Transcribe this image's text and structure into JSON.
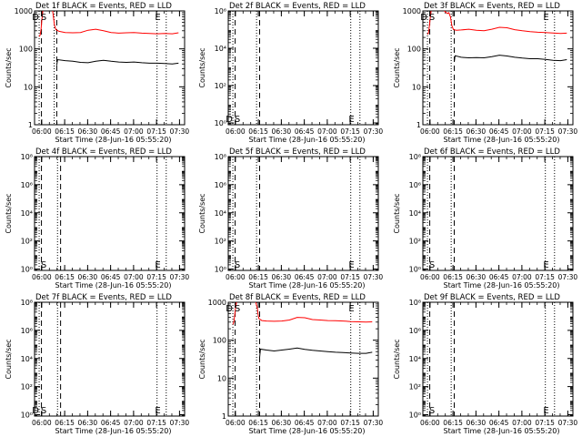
{
  "figure": {
    "xlabel": "Start Time (28-Jun-16 05:55:20)",
    "ylabel": "Counts/sec",
    "x_ticks": [
      "06:00",
      "06:15",
      "06:30",
      "06:45",
      "07:00",
      "07:15",
      "07:30"
    ],
    "x_tick_minutes": [
      4.67,
      19.67,
      34.67,
      49.67,
      64.67,
      79.67,
      94.67
    ],
    "x_range": [
      0,
      98
    ],
    "markers": {
      "start_label": "S",
      "end_label": "E",
      "start_min": 3.5,
      "end_min": 80.5
    },
    "colors": {
      "events": "#000000",
      "lld": "#ff0000",
      "axes": "#000000"
    }
  },
  "chart_data": [
    {
      "type": "line",
      "title": "Det 1f BLACK = Events, RED = LLD",
      "scale": "log",
      "ylim": [
        1,
        1000
      ],
      "y_ticks": [
        {
          "v": 1,
          "label": "1"
        },
        {
          "v": 10,
          "label": "10"
        },
        {
          "v": 100,
          "label": "100"
        },
        {
          "v": 1000,
          "label": "1000"
        }
      ],
      "dashed_lines": [
        4.5,
        14.5
      ],
      "dotted_lines": [
        3.0,
        12.8,
        80.0,
        86.0
      ],
      "show_D": true,
      "end_label_pos": "top",
      "series": [
        {
          "name": "LLD",
          "color": "#ff0000",
          "x": [
            3.0,
            3.6,
            4.2,
            4.8,
            5.4,
            6.0,
            11.0,
            11.8,
            12.4,
            13.0,
            14.0,
            16.0,
            20.0,
            25.0,
            30.0,
            35.0,
            40.0,
            45.0,
            50.0,
            55.0,
            60.0,
            65.0,
            70.0,
            75.0,
            80.0,
            85.0,
            90.0,
            94.0
          ],
          "y": [
            210,
            230,
            320,
            600,
            1000,
            1200,
            1200,
            1000,
            650,
            420,
            320,
            290,
            270,
            265,
            270,
            310,
            330,
            300,
            270,
            260,
            265,
            270,
            260,
            255,
            250,
            255,
            250,
            265
          ]
        },
        {
          "name": "Events",
          "color": "#000000",
          "x": [
            14.5,
            15.0,
            20.0,
            25.0,
            30.0,
            35.0,
            40.0,
            45.0,
            50.0,
            55.0,
            60.0,
            65.0,
            70.0,
            75.0,
            80.0,
            85.0,
            90.0,
            94.0
          ],
          "y": [
            37,
            52,
            49,
            47,
            44,
            43,
            47,
            50,
            47,
            45,
            44,
            45,
            43,
            42,
            42,
            41,
            40,
            42
          ]
        }
      ]
    },
    {
      "type": "line",
      "title": "Det 2f BLACK = Events, RED = LLD",
      "scale": "log",
      "ylim": [
        0.8,
        1000000
      ],
      "y_ticks": [
        {
          "v": 1,
          "label": "10⁰"
        },
        {
          "v": 100,
          "label": "10²"
        },
        {
          "v": 10000,
          "label": "10⁴"
        },
        {
          "v": 1000000,
          "label": "10⁶"
        }
      ],
      "dashed_lines": [
        4.5,
        20.5
      ],
      "dotted_lines": [
        3.0,
        18.5,
        80.0,
        86.0
      ],
      "show_D": true,
      "end_label_pos": "bottom",
      "series": []
    },
    {
      "type": "line",
      "title": "Det 3f BLACK = Events, RED = LLD",
      "scale": "log",
      "ylim": [
        1,
        1000
      ],
      "y_ticks": [
        {
          "v": 1,
          "label": "1"
        },
        {
          "v": 10,
          "label": "10"
        },
        {
          "v": 100,
          "label": "100"
        },
        {
          "v": 1000,
          "label": "1000"
        }
      ],
      "dashed_lines": [
        4.5,
        20.5
      ],
      "dotted_lines": [
        3.0,
        18.5,
        80.0,
        86.0
      ],
      "show_D": true,
      "end_label_pos": "top",
      "series": [
        {
          "name": "LLD",
          "color": "#ff0000",
          "x": [
            3.0,
            3.6,
            4.2,
            4.8,
            5.4,
            6.0,
            13.0,
            14.0,
            16.0,
            17.0,
            18.0,
            19.0,
            20.0,
            22.0,
            25.0,
            30.0,
            35.0,
            40.0,
            45.0,
            50.0,
            55.0,
            60.0,
            65.0,
            70.0,
            75.0,
            80.0,
            85.0,
            90.0,
            94.0
          ],
          "y": [
            240,
            260,
            380,
            650,
            1000,
            1200,
            1200,
            1000,
            850,
            900,
            700,
            400,
            320,
            310,
            315,
            330,
            310,
            300,
            330,
            370,
            360,
            320,
            300,
            285,
            275,
            270,
            262,
            255,
            260
          ]
        },
        {
          "name": "Events",
          "color": "#000000",
          "x": [
            20.5,
            21.0,
            25.0,
            30.0,
            35.0,
            40.0,
            45.0,
            50.0,
            55.0,
            60.0,
            65.0,
            70.0,
            75.0,
            80.0,
            85.0,
            90.0,
            94.0
          ],
          "y": [
            45,
            66,
            60,
            58,
            59,
            58,
            62,
            68,
            65,
            60,
            57,
            55,
            55,
            53,
            50,
            49,
            52
          ]
        }
      ]
    },
    {
      "type": "line",
      "title": "Det 4f BLACK = Events, RED = LLD",
      "scale": "log",
      "ylim": [
        0.8,
        100000000
      ],
      "y_ticks": [
        {
          "v": 1,
          "label": "10⁰"
        },
        {
          "v": 100,
          "label": "10²"
        },
        {
          "v": 10000,
          "label": "10⁴"
        },
        {
          "v": 1000000,
          "label": "10⁶"
        },
        {
          "v": 100000000,
          "label": "10⁸"
        }
      ],
      "dashed_lines": [
        4.5,
        17.0
      ],
      "dotted_lines": [
        3.0,
        15.0,
        80.0,
        86.0
      ],
      "show_D": false,
      "end_label_pos": "bottom",
      "series": []
    },
    {
      "type": "line",
      "title": "Det 5f BLACK = Events, RED = LLD",
      "scale": "log",
      "ylim": [
        0.8,
        100000000
      ],
      "y_ticks": [
        {
          "v": 1,
          "label": "10⁰"
        },
        {
          "v": 100,
          "label": "10²"
        },
        {
          "v": 10000,
          "label": "10⁴"
        },
        {
          "v": 1000000,
          "label": "10⁶"
        },
        {
          "v": 100000000,
          "label": "10⁸"
        }
      ],
      "dashed_lines": [
        4.5,
        20.5
      ],
      "dotted_lines": [
        3.0,
        18.5,
        80.0,
        86.0
      ],
      "show_D": false,
      "end_label_pos": "bottom",
      "series": []
    },
    {
      "type": "line",
      "title": "Det 6f BLACK = Events, RED = LLD",
      "scale": "log",
      "ylim": [
        0.8,
        100000000
      ],
      "y_ticks": [
        {
          "v": 1,
          "label": "10⁰"
        },
        {
          "v": 100,
          "label": "10²"
        },
        {
          "v": 10000,
          "label": "10⁴"
        },
        {
          "v": 1000000,
          "label": "10⁶"
        },
        {
          "v": 100000000,
          "label": "10⁸"
        }
      ],
      "dashed_lines": [
        4.5,
        20.5
      ],
      "dotted_lines": [
        3.0,
        18.5,
        80.0,
        86.0
      ],
      "show_D": false,
      "end_label_pos": "bottom",
      "series": []
    },
    {
      "type": "line",
      "title": "Det 7f BLACK = Events, RED = LLD",
      "scale": "log",
      "ylim": [
        0.8,
        100000000
      ],
      "y_ticks": [
        {
          "v": 1,
          "label": "10⁰"
        },
        {
          "v": 100,
          "label": "10²"
        },
        {
          "v": 10000,
          "label": "10⁴"
        },
        {
          "v": 1000000,
          "label": "10⁶"
        },
        {
          "v": 100000000,
          "label": "10⁸"
        }
      ],
      "dashed_lines": [
        4.5,
        17.0
      ],
      "dotted_lines": [
        3.0,
        15.0,
        80.0,
        86.0
      ],
      "show_D": true,
      "end_label_pos": "bottom",
      "series": []
    },
    {
      "type": "line",
      "title": "Det 8f BLACK = Events, RED = LLD",
      "scale": "log",
      "ylim": [
        1,
        1000
      ],
      "y_ticks": [
        {
          "v": 1,
          "label": "1"
        },
        {
          "v": 10,
          "label": "10"
        },
        {
          "v": 100,
          "label": "100"
        },
        {
          "v": 1000,
          "label": "1000"
        }
      ],
      "dashed_lines": [
        4.5,
        20.5
      ],
      "dotted_lines": [
        3.0,
        18.5,
        80.0,
        86.0
      ],
      "show_D": true,
      "end_label_pos": "top",
      "series": [
        {
          "name": "LLD",
          "color": "#ff0000",
          "x": [
            3.0,
            3.6,
            4.2,
            4.8,
            5.4,
            6.0,
            17.0,
            18.0,
            19.0,
            19.6,
            20.0,
            22.0,
            25.0,
            30.0,
            35.0,
            40.0,
            45.0,
            50.0,
            55.0,
            60.0,
            65.0,
            70.0,
            75.0,
            80.0,
            85.0,
            90.0,
            94.0
          ],
          "y": [
            260,
            300,
            450,
            750,
            1000,
            1200,
            1200,
            1000,
            700,
            450,
            370,
            330,
            320,
            315,
            320,
            340,
            400,
            390,
            350,
            340,
            330,
            325,
            320,
            310,
            305,
            300,
            305
          ]
        },
        {
          "name": "Events",
          "color": "#000000",
          "x": [
            20.5,
            21.0,
            25.0,
            30.0,
            35.0,
            40.0,
            45.0,
            50.0,
            55.0,
            60.0,
            65.0,
            70.0,
            75.0,
            80.0,
            85.0,
            90.0,
            94.0
          ],
          "y": [
            35,
            58,
            55,
            52,
            55,
            58,
            62,
            57,
            54,
            52,
            50,
            48,
            47,
            46,
            45,
            45,
            48
          ]
        }
      ]
    },
    {
      "type": "line",
      "title": "Det 9f BLACK = Events, RED = LLD",
      "scale": "log",
      "ylim": [
        0.8,
        100000000
      ],
      "y_ticks": [
        {
          "v": 1,
          "label": "10⁰"
        },
        {
          "v": 100,
          "label": "10²"
        },
        {
          "v": 10000,
          "label": "10⁴"
        },
        {
          "v": 1000000,
          "label": "10⁶"
        },
        {
          "v": 100000000,
          "label": "10⁸"
        }
      ],
      "dashed_lines": [
        4.5,
        20.5
      ],
      "dotted_lines": [
        3.0,
        18.5,
        80.0,
        86.0
      ],
      "show_D": false,
      "end_label_pos": "bottom",
      "series": []
    }
  ]
}
